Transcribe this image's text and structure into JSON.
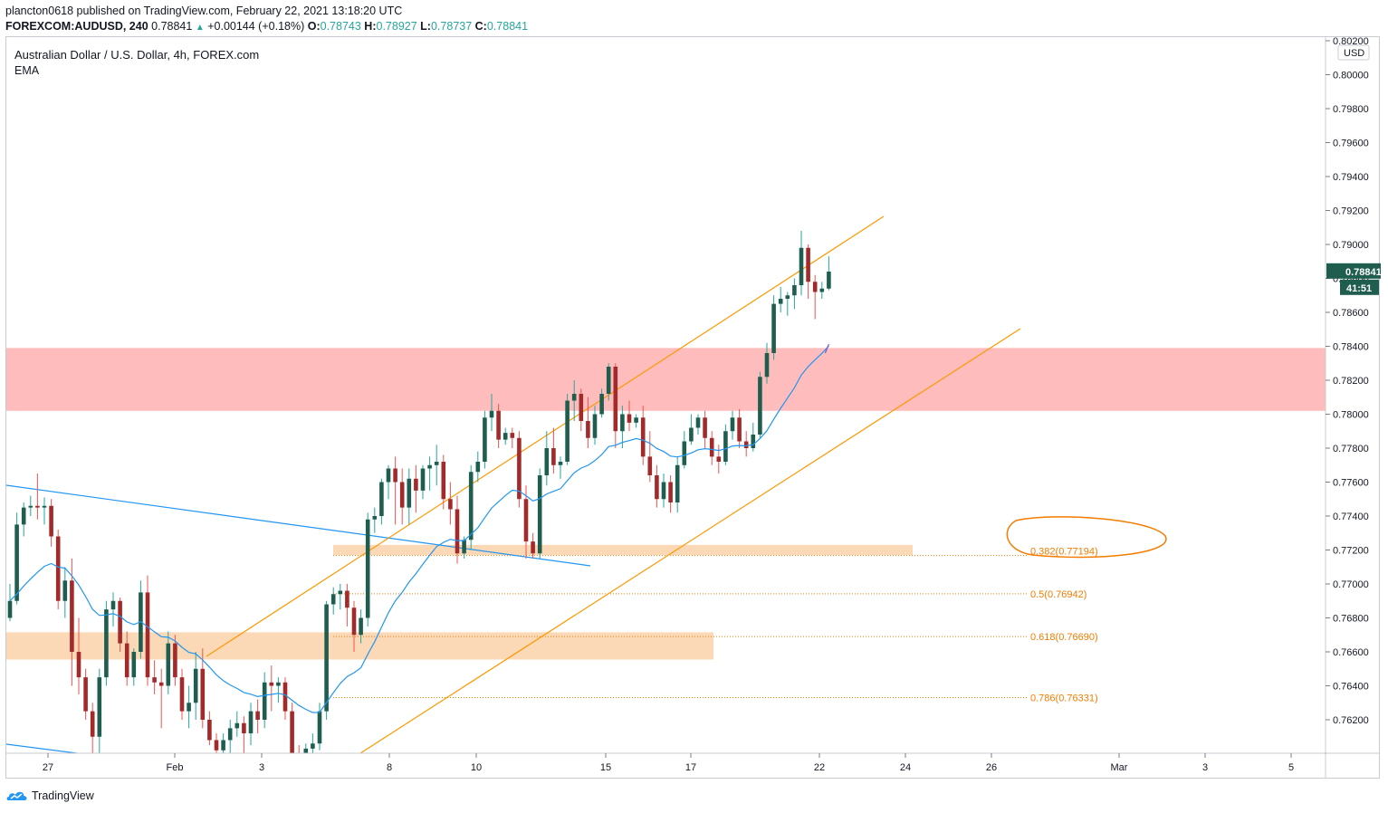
{
  "header": {
    "publisher_line": "plancton0618 published on TradingView.com, February 22, 2021 13:18:20 UTC",
    "symbol": "FOREXCOM:AUDUSD, 240",
    "last": "0.78841",
    "change": "+0.00144 (+0.18%)",
    "o_label": "O:",
    "o": "0.78743",
    "h_label": "H:",
    "h": "0.78927",
    "l_label": "L:",
    "l": "0.78737",
    "c_label": "C:",
    "c": "0.78841"
  },
  "legend": {
    "title": "Australian Dollar / U.S. Dollar, 4h, FOREX.com",
    "indicator": "EMA"
  },
  "brand": {
    "name": "TradingView"
  },
  "colors": {
    "up": "#26a69a",
    "down": "#ef5350",
    "up_body": "#1f5e4f",
    "down_body": "#a32a2a",
    "ema": "#2196f3",
    "channel": "#ff9800",
    "resistance_zone": "#ffbcbc",
    "support_zone": "#fcd9b6",
    "fib_text": "#f57c00",
    "price_tag": "#1f5e4f"
  },
  "chart_data": {
    "type": "candlestick",
    "title": "Australian Dollar / U.S. Dollar, 4h, FOREX.com",
    "currency": "USD",
    "ylim": [
      0.76,
      0.8022
    ],
    "y_ticks": [
      "0.80200",
      "0.80000",
      "0.79800",
      "0.79600",
      "0.79400",
      "0.79200",
      "0.79000",
      "0.78800",
      "0.78600",
      "0.78400",
      "0.78200",
      "0.78000",
      "0.77800",
      "0.77600",
      "0.77400",
      "0.77200",
      "0.77000",
      "0.76800",
      "0.76600",
      "0.76400",
      "0.76200"
    ],
    "x_ticks": [
      "27",
      "Feb",
      "3",
      "8",
      "10",
      "15",
      "17",
      "22",
      "24",
      "26",
      "Mar",
      "3",
      "5"
    ],
    "last_price": "0.78841",
    "countdown": "41:51",
    "zones": [
      {
        "name": "resistance",
        "from": 0.7802,
        "to": 0.7839
      },
      {
        "name": "support",
        "from": 0.7656,
        "to": 0.7671
      }
    ],
    "fib_levels": [
      {
        "label": "0.382(0.77194)",
        "price": 0.77194,
        "highlighted": true
      },
      {
        "label": "0.5(0.76942)",
        "price": 0.76942
      },
      {
        "label": "0.618(0.76690)",
        "price": 0.7669
      },
      {
        "label": "0.786(0.76331)",
        "price": 0.76331
      }
    ],
    "candles": [
      [
        0.768,
        0.77,
        0.7678,
        0.769
      ],
      [
        0.769,
        0.7742,
        0.7688,
        0.7735
      ],
      [
        0.7735,
        0.7748,
        0.7728,
        0.7745
      ],
      [
        0.7745,
        0.7752,
        0.774,
        0.7746
      ],
      [
        0.7746,
        0.7765,
        0.7738,
        0.7745
      ],
      [
        0.7745,
        0.7751,
        0.7735,
        0.7746
      ],
      [
        0.7746,
        0.775,
        0.7722,
        0.7728
      ],
      [
        0.7728,
        0.7732,
        0.7685,
        0.769
      ],
      [
        0.769,
        0.771,
        0.768,
        0.7702
      ],
      [
        0.7702,
        0.7715,
        0.764,
        0.766
      ],
      [
        0.766,
        0.768,
        0.7635,
        0.7645
      ],
      [
        0.7645,
        0.765,
        0.762,
        0.7625
      ],
      [
        0.7625,
        0.763,
        0.76,
        0.761
      ],
      [
        0.761,
        0.765,
        0.76,
        0.7645
      ],
      [
        0.7645,
        0.769,
        0.764,
        0.7685
      ],
      [
        0.7685,
        0.7695,
        0.7675,
        0.769
      ],
      [
        0.769,
        0.7692,
        0.766,
        0.7665
      ],
      [
        0.7665,
        0.7672,
        0.764,
        0.7645
      ],
      [
        0.7645,
        0.7662,
        0.764,
        0.766
      ],
      [
        0.766,
        0.7702,
        0.7656,
        0.7695
      ],
      [
        0.7695,
        0.7705,
        0.764,
        0.7645
      ],
      [
        0.7645,
        0.7655,
        0.7635,
        0.7642
      ],
      [
        0.7642,
        0.765,
        0.7615,
        0.764
      ],
      [
        0.764,
        0.7672,
        0.7635,
        0.7665
      ],
      [
        0.7665,
        0.767,
        0.764,
        0.7645
      ],
      [
        0.7645,
        0.765,
        0.762,
        0.7625
      ],
      [
        0.7625,
        0.764,
        0.7615,
        0.763
      ],
      [
        0.763,
        0.766,
        0.762,
        0.765
      ],
      [
        0.765,
        0.7662,
        0.7615,
        0.762
      ],
      [
        0.762,
        0.7625,
        0.7605,
        0.7608
      ],
      [
        0.7608,
        0.7612,
        0.7595,
        0.7602
      ],
      [
        0.7602,
        0.7612,
        0.7595,
        0.7608
      ],
      [
        0.7608,
        0.762,
        0.7598,
        0.7615
      ],
      [
        0.7615,
        0.7625,
        0.761,
        0.7618
      ],
      [
        0.7618,
        0.7622,
        0.76,
        0.7612
      ],
      [
        0.7612,
        0.763,
        0.7605,
        0.7625
      ],
      [
        0.7625,
        0.7632,
        0.7612,
        0.762
      ],
      [
        0.762,
        0.7648,
        0.7615,
        0.7642
      ],
      [
        0.7642,
        0.7652,
        0.7625,
        0.764
      ],
      [
        0.764,
        0.7645,
        0.763,
        0.7642
      ],
      [
        0.7642,
        0.7645,
        0.762,
        0.7625
      ],
      [
        0.7625,
        0.763,
        0.7595,
        0.76
      ],
      [
        0.76,
        0.7605,
        0.759,
        0.7598
      ],
      [
        0.7598,
        0.7606,
        0.759,
        0.7603
      ],
      [
        0.7603,
        0.7612,
        0.7598,
        0.7606
      ],
      [
        0.7606,
        0.763,
        0.7602,
        0.7625
      ],
      [
        0.7625,
        0.769,
        0.762,
        0.7688
      ],
      [
        0.7688,
        0.7698,
        0.7682,
        0.7694
      ],
      [
        0.7694,
        0.77,
        0.7685,
        0.7696
      ],
      [
        0.7696,
        0.77,
        0.7675,
        0.7686
      ],
      [
        0.7686,
        0.769,
        0.766,
        0.767
      ],
      [
        0.767,
        0.7685,
        0.7665,
        0.768
      ],
      [
        0.768,
        0.7742,
        0.7675,
        0.7738
      ],
      [
        0.7738,
        0.7745,
        0.773,
        0.774
      ],
      [
        0.774,
        0.7762,
        0.7735,
        0.776
      ],
      [
        0.776,
        0.777,
        0.775,
        0.7768
      ],
      [
        0.7768,
        0.7775,
        0.7735,
        0.776
      ],
      [
        0.776,
        0.7768,
        0.7735,
        0.7745
      ],
      [
        0.7745,
        0.7768,
        0.7735,
        0.7762
      ],
      [
        0.7762,
        0.777,
        0.7742,
        0.7755
      ],
      [
        0.7755,
        0.777,
        0.775,
        0.7768
      ],
      [
        0.7768,
        0.7775,
        0.7755,
        0.777
      ],
      [
        0.777,
        0.7782,
        0.7758,
        0.7772
      ],
      [
        0.7772,
        0.7776,
        0.7744,
        0.775
      ],
      [
        0.775,
        0.776,
        0.7735,
        0.7744
      ],
      [
        0.7744,
        0.7752,
        0.7712,
        0.7718
      ],
      [
        0.7718,
        0.7728,
        0.7715,
        0.7726
      ],
      [
        0.7726,
        0.777,
        0.772,
        0.7766
      ],
      [
        0.7766,
        0.7778,
        0.776,
        0.7772
      ],
      [
        0.7772,
        0.7802,
        0.7768,
        0.7798
      ],
      [
        0.7798,
        0.7812,
        0.779,
        0.7802
      ],
      [
        0.7802,
        0.7806,
        0.778,
        0.7785
      ],
      [
        0.7785,
        0.7792,
        0.7782,
        0.7789
      ],
      [
        0.7789,
        0.7792,
        0.778,
        0.7786
      ],
      [
        0.7786,
        0.779,
        0.7745,
        0.775
      ],
      [
        0.775,
        0.7758,
        0.7715,
        0.7725
      ],
      [
        0.7725,
        0.773,
        0.7715,
        0.7718
      ],
      [
        0.7718,
        0.7768,
        0.7715,
        0.7764
      ],
      [
        0.7764,
        0.779,
        0.7758,
        0.778
      ],
      [
        0.778,
        0.7792,
        0.7765,
        0.777
      ],
      [
        0.777,
        0.7775,
        0.7762,
        0.7772
      ],
      [
        0.7772,
        0.7812,
        0.777,
        0.7808
      ],
      [
        0.7808,
        0.782,
        0.7796,
        0.7812
      ],
      [
        0.7812,
        0.7815,
        0.779,
        0.7796
      ],
      [
        0.7796,
        0.781,
        0.778,
        0.7786
      ],
      [
        0.7786,
        0.7805,
        0.7782,
        0.78
      ],
      [
        0.78,
        0.7815,
        0.7798,
        0.7812
      ],
      [
        0.7812,
        0.783,
        0.7808,
        0.7828
      ],
      [
        0.7828,
        0.783,
        0.778,
        0.779
      ],
      [
        0.779,
        0.7805,
        0.778,
        0.78
      ],
      [
        0.78,
        0.7808,
        0.779,
        0.7795
      ],
      [
        0.7795,
        0.78,
        0.7792,
        0.7798
      ],
      [
        0.7798,
        0.7805,
        0.777,
        0.7775
      ],
      [
        0.7775,
        0.779,
        0.776,
        0.7764
      ],
      [
        0.7764,
        0.777,
        0.7745,
        0.775
      ],
      [
        0.775,
        0.7765,
        0.7745,
        0.776
      ],
      [
        0.776,
        0.7764,
        0.7742,
        0.7748
      ],
      [
        0.7748,
        0.7775,
        0.7742,
        0.777
      ],
      [
        0.777,
        0.779,
        0.7768,
        0.7784
      ],
      [
        0.7784,
        0.78,
        0.7782,
        0.7792
      ],
      [
        0.7792,
        0.78,
        0.7788,
        0.7798
      ],
      [
        0.7798,
        0.7802,
        0.778,
        0.7786
      ],
      [
        0.7786,
        0.779,
        0.777,
        0.7775
      ],
      [
        0.7775,
        0.7782,
        0.7765,
        0.7772
      ],
      [
        0.7772,
        0.7794,
        0.777,
        0.779
      ],
      [
        0.779,
        0.7802,
        0.7785,
        0.7798
      ],
      [
        0.7798,
        0.7803,
        0.778,
        0.7784
      ],
      [
        0.7784,
        0.779,
        0.7775,
        0.778
      ],
      [
        0.778,
        0.7795,
        0.7778,
        0.7788
      ],
      [
        0.7788,
        0.7825,
        0.7786,
        0.7822
      ],
      [
        0.7822,
        0.7842,
        0.7818,
        0.7836
      ],
      [
        0.7836,
        0.787,
        0.7832,
        0.7865
      ],
      [
        0.7865,
        0.7875,
        0.786,
        0.7868
      ],
      [
        0.7868,
        0.7872,
        0.7858,
        0.787
      ],
      [
        0.787,
        0.788,
        0.7862,
        0.7876
      ],
      [
        0.7876,
        0.7908,
        0.787,
        0.7898
      ],
      [
        0.7898,
        0.79,
        0.7868,
        0.7878
      ],
      [
        0.7878,
        0.7882,
        0.7856,
        0.7872
      ],
      [
        0.7872,
        0.7878,
        0.7868,
        0.7874
      ],
      [
        0.7874,
        0.7893,
        0.7873,
        0.7884
      ]
    ]
  }
}
